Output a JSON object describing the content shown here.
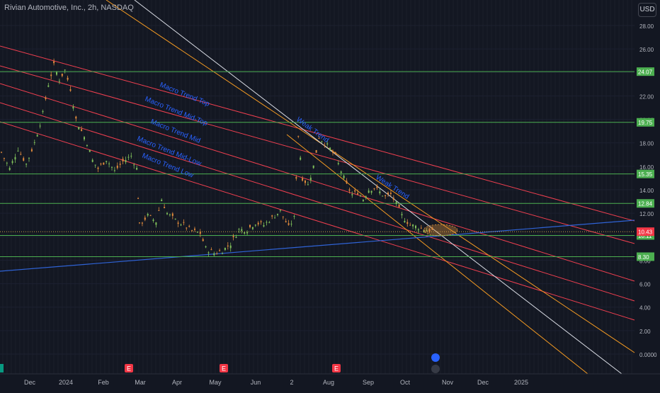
{
  "chart_data": {
    "type": "line",
    "title": "Rivian Automotive, Inc., 2h, NASDAQ",
    "currency": "USD",
    "y_ticks": [
      0,
      2,
      4,
      6,
      8,
      10,
      12,
      14,
      16,
      18,
      20,
      22,
      24,
      26,
      28
    ],
    "y_tick_labels": [
      "0.0000",
      "2.00",
      "4.00",
      "6.00",
      "8.00",
      "10.00",
      "12.00",
      "14.00",
      "16.00",
      "18.00",
      "20.00",
      "22.00",
      "24.00",
      "26.00",
      "28.00"
    ],
    "x_labels": [
      "Dec",
      "2024",
      "Feb",
      "Mar",
      "Apr",
      "May",
      "Jun",
      "2",
      "Aug",
      "Sep",
      "Oct",
      "Nov",
      "Dec",
      "2025"
    ],
    "ylim": [
      -1.8,
      30.1
    ],
    "horizontal_levels": [
      {
        "value": 24.07,
        "label": "24.07",
        "color": "#4caf50"
      },
      {
        "value": 19.75,
        "label": "19.75",
        "color": "#4caf50"
      },
      {
        "value": 15.35,
        "label": "15.35",
        "color": "#4caf50"
      },
      {
        "value": 12.84,
        "label": "12.84",
        "color": "#4caf50"
      },
      {
        "value": 10.11,
        "label": "10.11",
        "color": "#4caf50"
      },
      {
        "value": 8.3,
        "label": "8.30",
        "color": "#4caf50"
      }
    ],
    "last_price": {
      "value": 10.43,
      "label": "10.43",
      "color": "#f23645"
    },
    "channel_labels": [
      "Macro Trend Top",
      "Macro Trend Mid-Top",
      "Macro Trend Mid",
      "Macro Trend Mid-Low",
      "Macro Trend Low"
    ],
    "weak_trend_labels": [
      "Weak Trend",
      "Weak Trend"
    ],
    "earnings_markers": [
      "E",
      "E",
      "E"
    ],
    "price_path": [
      [
        0,
        17.2
      ],
      [
        0.3,
        15.8
      ],
      [
        0.6,
        17.5
      ],
      [
        0.9,
        16.2
      ],
      [
        1.2,
        18.0
      ],
      [
        1.5,
        20.5
      ],
      [
        1.7,
        23.0
      ],
      [
        1.9,
        24.6
      ],
      [
        2.1,
        23.4
      ],
      [
        2.3,
        24.2
      ],
      [
        2.5,
        22.6
      ],
      [
        2.7,
        20.0
      ],
      [
        2.9,
        19.0
      ],
      [
        3.1,
        18.0
      ],
      [
        3.3,
        16.5
      ],
      [
        3.5,
        15.8
      ],
      [
        3.8,
        16.6
      ],
      [
        4.1,
        15.6
      ],
      [
        4.4,
        16.4
      ],
      [
        4.7,
        16.9
      ],
      [
        4.9,
        15.8
      ],
      [
        5.0,
        11.0
      ],
      [
        5.3,
        11.8
      ],
      [
        5.6,
        11.3
      ],
      [
        5.8,
        13.2
      ],
      [
        6.0,
        12.0
      ],
      [
        6.3,
        11.4
      ],
      [
        6.6,
        11.0
      ],
      [
        6.9,
        10.5
      ],
      [
        7.2,
        10.3
      ],
      [
        7.4,
        9.0
      ],
      [
        7.7,
        8.6
      ],
      [
        8.0,
        8.8
      ],
      [
        8.3,
        9.4
      ],
      [
        8.6,
        10.6
      ],
      [
        8.9,
        10.6
      ],
      [
        9.2,
        11.2
      ],
      [
        9.5,
        11.0
      ],
      [
        9.8,
        11.6
      ],
      [
        10.1,
        12.2
      ],
      [
        10.4,
        10.8
      ],
      [
        10.6,
        11.6
      ],
      [
        10.75,
        18.6
      ],
      [
        10.9,
        15.0
      ],
      [
        11.1,
        14.4
      ],
      [
        11.3,
        16.0
      ],
      [
        11.5,
        18.5
      ],
      [
        11.7,
        18.0
      ],
      [
        11.9,
        17.5
      ],
      [
        12.1,
        16.8
      ],
      [
        12.3,
        15.6
      ],
      [
        12.5,
        14.4
      ],
      [
        12.7,
        13.6
      ],
      [
        12.9,
        13.8
      ],
      [
        13.1,
        13.2
      ],
      [
        13.3,
        14.0
      ],
      [
        13.5,
        14.2
      ],
      [
        13.7,
        13.8
      ],
      [
        13.9,
        13.4
      ],
      [
        14.1,
        13.6
      ],
      [
        14.3,
        12.8
      ],
      [
        14.5,
        11.8
      ],
      [
        14.8,
        11.0
      ],
      [
        15.1,
        10.8
      ],
      [
        15.4,
        10.6
      ],
      [
        15.7,
        10.5
      ]
    ],
    "candle_amplitude": 0.45
  },
  "colors": {
    "level": "#4caf50",
    "macro_channel": "#ef3f4f",
    "orange_trend": "#f59b22",
    "white_trend": "#d9dce4",
    "blue_trend": "#2f63d6",
    "label_text": "#2962ff",
    "price": "#4caf50"
  }
}
